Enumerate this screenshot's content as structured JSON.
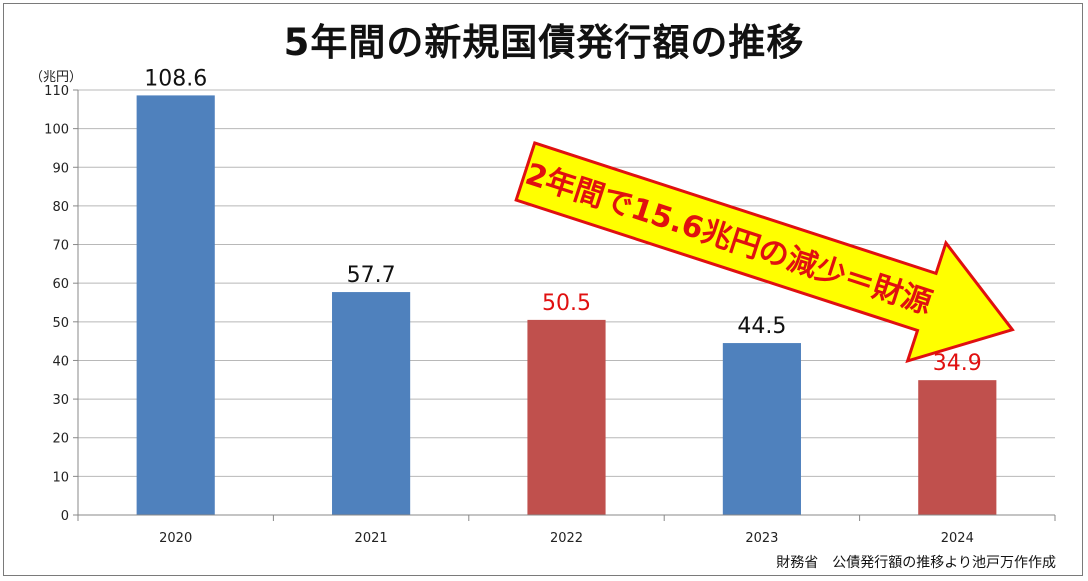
{
  "chart_data": {
    "type": "bar",
    "title": "5年間の新規国債発行額の推移",
    "ylabel": "（兆円）",
    "categories": [
      "2020",
      "2021",
      "2022",
      "2023",
      "2024"
    ],
    "values": [
      108.6,
      57.7,
      50.5,
      44.5,
      34.9
    ],
    "value_labels": [
      "108.6",
      "57.7",
      "50.5",
      "44.5",
      "34.9"
    ],
    "highlighted": [
      false,
      false,
      true,
      false,
      true
    ],
    "ylim": [
      0,
      110
    ],
    "yticks": [
      "0",
      "10",
      "20",
      "30",
      "40",
      "50",
      "60",
      "70",
      "80",
      "90",
      "100",
      "110"
    ],
    "grid": true,
    "annotation": "2年間で15.6兆円の減少＝財源",
    "source": "財務省　公債発行額の推移より池戸万作作成"
  },
  "colors": {
    "bar_default": "#4f81bd",
    "bar_highlight": "#c0504d",
    "label_default": "#111111",
    "label_highlight": "#e01010",
    "gridline": "#b8b8b8",
    "callout_fill": "#ffff00",
    "callout_stroke": "#e01010"
  }
}
